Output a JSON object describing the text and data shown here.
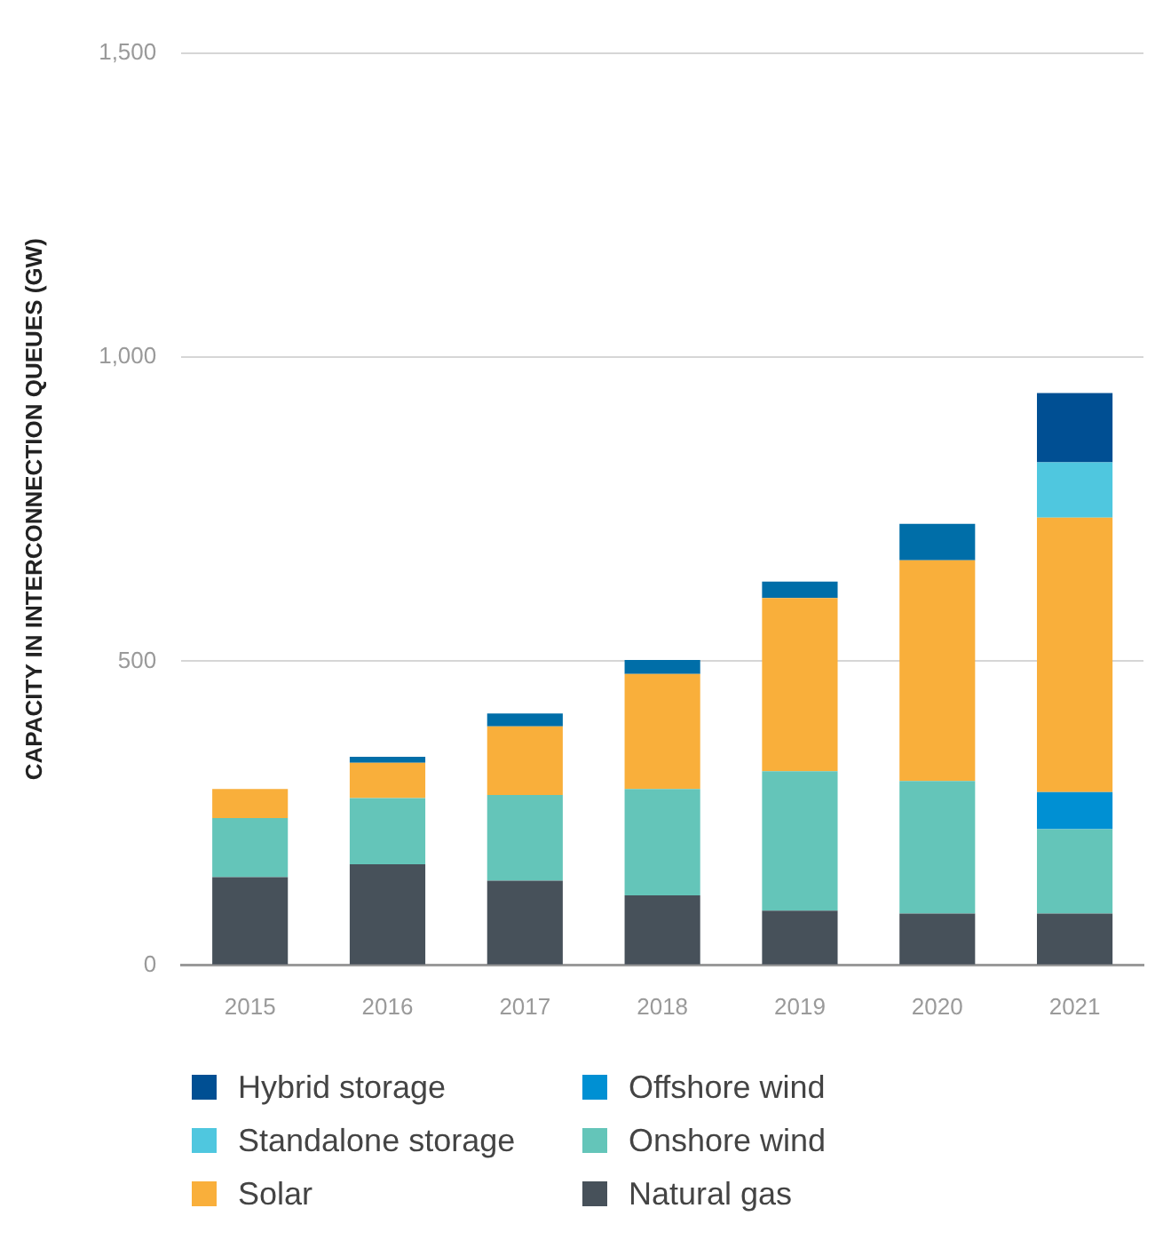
{
  "chart_data": {
    "type": "bar",
    "stacked": true,
    "ylabel": "CAPACITY IN INTERCONNECTION QUEUES (GW)",
    "categories": [
      "2015",
      "2016",
      "2017",
      "2018",
      "2019",
      "2020",
      "2021"
    ],
    "series": [
      {
        "name": "Natural gas",
        "color": "#47515a",
        "values": [
          145,
          166,
          139,
          115,
          90,
          85,
          85
        ]
      },
      {
        "name": "Onshore wind",
        "color": "#64c5b9",
        "values": [
          97,
          109,
          141,
          175,
          229,
          218,
          139
        ]
      },
      {
        "name": "Offshore wind",
        "color": "#0090d3",
        "values": [
          null,
          null,
          null,
          null,
          null,
          null,
          61
        ]
      },
      {
        "name": "Solar",
        "color": "#f9af3b",
        "values": [
          48,
          58,
          113,
          189,
          285,
          363,
          451
        ]
      },
      {
        "name": "Standalone storage",
        "color": "#4fc7df",
        "values": [
          null,
          null,
          null,
          null,
          null,
          null,
          91
        ]
      },
      {
        "name": "Hybrid storage",
        "color": "#004f93",
        "colors": [
          "#006ea8",
          "#006ea8",
          "#006ea8",
          "#006ea8",
          "#006ea8",
          "#006ea8",
          "#004f93"
        ],
        "values": [
          null,
          10,
          21,
          23,
          27,
          60,
          114
        ]
      }
    ],
    "ylim": [
      0,
      1500
    ],
    "yticks": [
      0,
      {
        "value": 500,
        "label": "500"
      },
      {
        "value": 1000,
        "label": "1,000"
      },
      {
        "value": 1500,
        "label": "1,500"
      }
    ],
    "grid": "y",
    "legend": "bottom"
  }
}
